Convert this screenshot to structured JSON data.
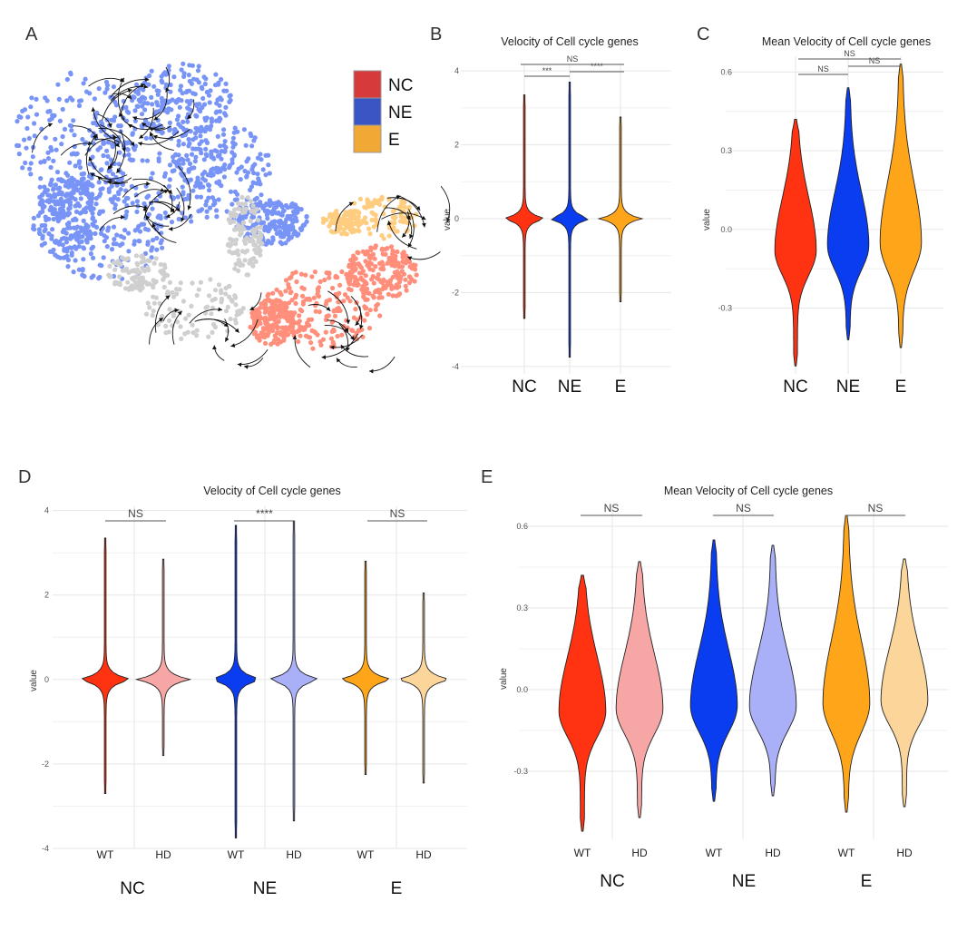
{
  "panel_labels": [
    "A",
    "B",
    "C",
    "D",
    "E"
  ],
  "legend": [
    {
      "label": "NC",
      "color": "#d63a3a"
    },
    {
      "label": "NE",
      "color": "#3a55c4"
    },
    {
      "label": "E",
      "color": "#f2a834"
    }
  ],
  "colors": {
    "NC": "#ff3311",
    "NE": "#0b3df0",
    "E": "#ffa51a",
    "NC_HD": "#f7a6a6",
    "NE_HD": "#a9b0f7",
    "E_HD": "#fcd59a",
    "umap_gray": "#a8a8a8"
  },
  "chart_data": [
    {
      "id": "B",
      "type": "violin",
      "title": "Velocity of Cell cycle genes",
      "ylabel": "value",
      "ylim": [
        -4.2,
        4.2
      ],
      "yticks": [
        -4,
        -2,
        0,
        2,
        4
      ],
      "categories": [
        "NC",
        "NE",
        "E"
      ],
      "series": [
        {
          "name": "NC",
          "min": -2.7,
          "max": 3.35,
          "center": 0
        },
        {
          "name": "NE",
          "min": -3.75,
          "max": 3.7,
          "center": 0
        },
        {
          "name": "E",
          "min": -2.25,
          "max": 2.75,
          "center": 0
        }
      ],
      "significance": [
        {
          "label": "***",
          "from": "NC",
          "to": "NE"
        },
        {
          "label": "****",
          "from": "NE",
          "to": "E"
        },
        {
          "label": "NS",
          "from": "NC",
          "to": "E"
        }
      ]
    },
    {
      "id": "C",
      "type": "violin",
      "title": "Mean Velocity of Cell cycle genes",
      "ylabel": "value",
      "ylim": [
        -0.55,
        0.66
      ],
      "yticks": [
        -0.3,
        0.0,
        0.3,
        0.6
      ],
      "ytick_labels": [
        "-0.3",
        "0.0",
        "0.3",
        "0.6"
      ],
      "categories": [
        "NC",
        "NE",
        "E"
      ],
      "series": [
        {
          "name": "NC",
          "min": -0.52,
          "max": 0.42,
          "center": -0.08
        },
        {
          "name": "NE",
          "min": -0.42,
          "max": 0.54,
          "center": -0.06
        },
        {
          "name": "E",
          "min": -0.45,
          "max": 0.63,
          "center": -0.05
        }
      ],
      "significance": [
        {
          "label": "NS",
          "from": "NC",
          "to": "NE"
        },
        {
          "label": "NS",
          "from": "NE",
          "to": "E"
        },
        {
          "label": "NS",
          "from": "NC",
          "to": "E"
        }
      ]
    },
    {
      "id": "D",
      "type": "violin",
      "title": "Velocity of Cell cycle genes",
      "ylabel": "value",
      "ylim": [
        -4,
        4.1
      ],
      "yticks": [
        -4,
        -2,
        0,
        2,
        4
      ],
      "groups": [
        "NC",
        "NE",
        "E"
      ],
      "subcategories": [
        "WT",
        "HD"
      ],
      "series": [
        {
          "group": "NC",
          "name": "WT",
          "min": -2.7,
          "max": 3.35,
          "center": 0
        },
        {
          "group": "NC",
          "name": "HD",
          "min": -1.8,
          "max": 2.85,
          "center": 0
        },
        {
          "group": "NE",
          "name": "WT",
          "min": -3.75,
          "max": 3.65,
          "center": 0
        },
        {
          "group": "NE",
          "name": "HD",
          "min": -3.35,
          "max": 3.75,
          "center": 0
        },
        {
          "group": "E",
          "name": "WT",
          "min": -2.25,
          "max": 2.8,
          "center": 0
        },
        {
          "group": "E",
          "name": "HD",
          "min": -2.45,
          "max": 2.05,
          "center": 0
        }
      ],
      "significance": [
        {
          "group": "NC",
          "label": "NS"
        },
        {
          "group": "NE",
          "label": "****"
        },
        {
          "group": "E",
          "label": "NS"
        }
      ]
    },
    {
      "id": "E",
      "type": "violin",
      "title": "Mean Velocity of Cell cycle genes",
      "ylabel": "value",
      "ylim": [
        -0.55,
        0.68
      ],
      "yticks": [
        -0.3,
        0.0,
        0.3,
        0.6
      ],
      "ytick_labels": [
        "-0.3",
        "0.0",
        "0.3",
        "0.6"
      ],
      "groups": [
        "NC",
        "NE",
        "E"
      ],
      "subcategories": [
        "WT",
        "HD"
      ],
      "series": [
        {
          "group": "NC",
          "name": "WT",
          "min": -0.52,
          "max": 0.42,
          "center": -0.08
        },
        {
          "group": "NC",
          "name": "HD",
          "min": -0.47,
          "max": 0.47,
          "center": -0.07
        },
        {
          "group": "NE",
          "name": "WT",
          "min": -0.41,
          "max": 0.55,
          "center": -0.06
        },
        {
          "group": "NE",
          "name": "HD",
          "min": -0.39,
          "max": 0.53,
          "center": -0.06
        },
        {
          "group": "E",
          "name": "WT",
          "min": -0.45,
          "max": 0.64,
          "center": -0.05
        },
        {
          "group": "E",
          "name": "HD",
          "min": -0.43,
          "max": 0.48,
          "center": -0.04
        }
      ],
      "significance": [
        {
          "group": "NC",
          "label": "NS"
        },
        {
          "group": "NE",
          "label": "NS"
        },
        {
          "group": "E",
          "label": "NS"
        }
      ]
    }
  ]
}
